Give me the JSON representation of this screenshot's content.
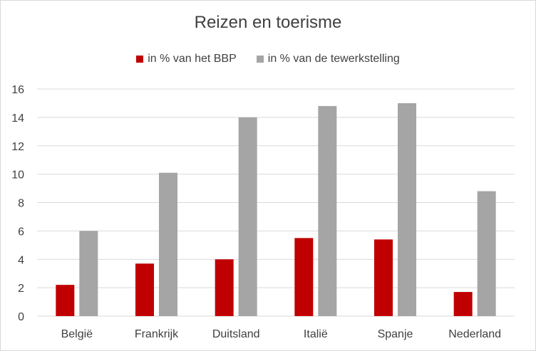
{
  "chart_data": {
    "type": "bar",
    "title": "Reizen en toerisme",
    "categories": [
      "België",
      "Frankrijk",
      "Duitsland",
      "Italië",
      "Spanje",
      "Nederland"
    ],
    "series": [
      {
        "name": "in % van het BBP",
        "values": [
          2.2,
          3.7,
          4.0,
          5.5,
          5.4,
          1.7
        ],
        "color": "#c00000"
      },
      {
        "name": "in % van de tewerkstelling",
        "values": [
          6.0,
          10.1,
          14.0,
          14.8,
          15.0,
          8.8
        ],
        "color": "#a5a5a5"
      }
    ],
    "ylim": [
      0,
      16
    ],
    "yticks": [
      0,
      2,
      4,
      6,
      8,
      10,
      12,
      14,
      16
    ],
    "grid": true,
    "legend": "top",
    "xlabel": "",
    "ylabel": ""
  }
}
